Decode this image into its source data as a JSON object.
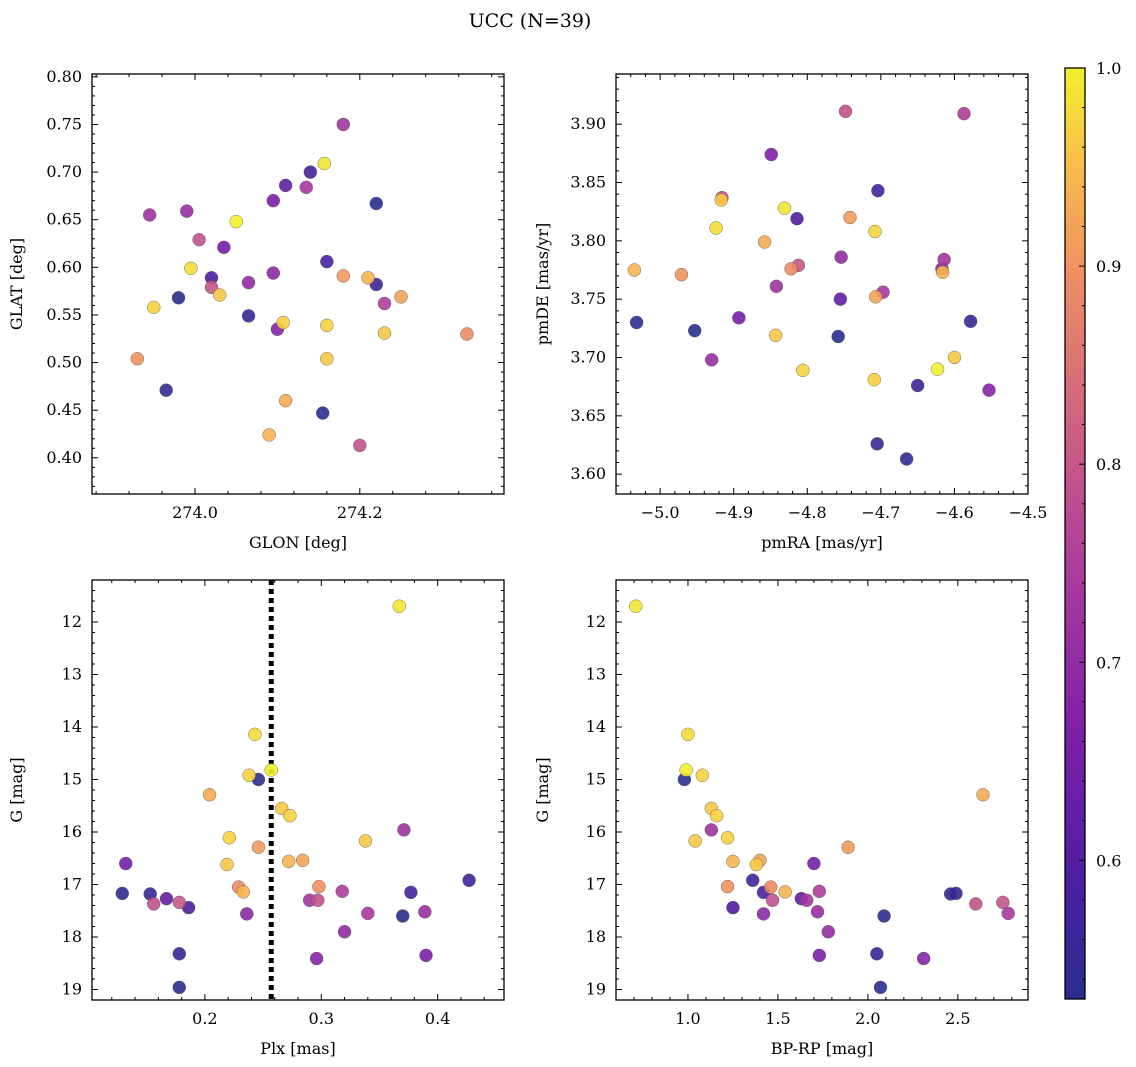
{
  "chart_data": {
    "title": "UCC (N=39)",
    "colorbar": {
      "cmap": "plasma",
      "range": [
        0.53,
        1.0
      ],
      "ticks": [
        "0.6",
        "0.7",
        "0.8",
        "0.9",
        "1.0"
      ]
    },
    "panels": [
      {
        "type": "scatter",
        "xlabel": "GLON [deg]",
        "ylabel": "GLAT [deg]",
        "xlim": [
          273.875,
          274.375
        ],
        "ylim": [
          0.362,
          0.803
        ],
        "xticks": [
          "274.0",
          "274.2"
        ],
        "yticks": [
          "0.40",
          "0.45",
          "0.50",
          "0.55",
          "0.60",
          "0.65",
          "0.70",
          "0.75",
          "0.80"
        ]
      },
      {
        "type": "scatter",
        "xlabel": "pmRA [mas/yr]",
        "ylabel": "pmDE [mas/yr]",
        "xlim": [
          -5.06,
          -4.5
        ],
        "ylim": [
          3.583,
          3.943
        ],
        "xticks": [
          "−5.0",
          "−4.9",
          "−4.8",
          "−4.7",
          "−4.6",
          "−4.5"
        ],
        "yticks": [
          "3.60",
          "3.65",
          "3.70",
          "3.75",
          "3.80",
          "3.85",
          "3.90"
        ]
      },
      {
        "type": "scatter",
        "xlabel": "Plx [mas]",
        "ylabel": "G [mag]",
        "xlim": [
          0.103,
          0.457
        ],
        "ylim": [
          19.2,
          11.2
        ],
        "invert_y": true,
        "xticks": [
          "0.2",
          "0.3",
          "0.4"
        ],
        "yticks": [
          "12",
          "13",
          "14",
          "15",
          "16",
          "17",
          "18",
          "19"
        ],
        "vline": 0.257
      },
      {
        "type": "scatter",
        "xlabel": "BP-RP [mag]",
        "ylabel": "G [mag]",
        "xlim": [
          0.6,
          2.89
        ],
        "ylim": [
          19.2,
          11.2
        ],
        "invert_y": true,
        "xticks": [
          "1.0",
          "1.5",
          "2.0",
          "2.5"
        ],
        "yticks": [
          "12",
          "13",
          "14",
          "15",
          "16",
          "17",
          "18",
          "19"
        ]
      }
    ],
    "points": [
      {
        "glon": 274.157,
        "glat": 0.709,
        "pmra": -4.831,
        "pmde": 3.828,
        "plx": 0.367,
        "g": 11.7,
        "bprp": 0.71,
        "p": 0.99
      },
      {
        "glon": 273.995,
        "glat": 0.599,
        "pmra": -4.924,
        "pmde": 3.811,
        "plx": 0.243,
        "g": 14.14,
        "bprp": 1.0,
        "p": 0.98
      },
      {
        "glon": 273.98,
        "glat": 0.568,
        "pmra": -4.953,
        "pmde": 3.723,
        "plx": 0.246,
        "g": 15.0,
        "bprp": 0.98,
        "p": 0.53
      },
      {
        "glon": 274.05,
        "glat": 0.648,
        "pmra": -4.623,
        "pmde": 3.69,
        "plx": 0.257,
        "g": 14.82,
        "bprp": 0.99,
        "p": 1.0
      },
      {
        "glon": 274.107,
        "glat": 0.542,
        "pmra": -4.806,
        "pmde": 3.689,
        "plx": 0.238,
        "g": 14.92,
        "bprp": 1.08,
        "p": 0.97
      },
      {
        "glon": 274.16,
        "glat": 0.539,
        "pmra": -4.708,
        "pmde": 3.808,
        "plx": 0.273,
        "g": 15.69,
        "bprp": 1.16,
        "p": 0.97
      },
      {
        "glon": 274.23,
        "glat": 0.531,
        "pmra": -4.917,
        "pmde": 3.835,
        "plx": 0.266,
        "g": 15.55,
        "bprp": 1.13,
        "p": 0.96
      },
      {
        "glon": 274.11,
        "glat": 0.46,
        "pmra": -4.858,
        "pmde": 3.799,
        "plx": 0.204,
        "g": 15.29,
        "bprp": 2.64,
        "p": 0.93
      },
      {
        "glon": 273.95,
        "glat": 0.558,
        "pmra": -4.709,
        "pmde": 3.681,
        "plx": 0.221,
        "g": 16.11,
        "bprp": 1.22,
        "p": 0.97
      },
      {
        "glon": 274.16,
        "glat": 0.504,
        "pmra": -4.6,
        "pmde": 3.7,
        "plx": 0.338,
        "g": 16.17,
        "bprp": 1.04,
        "p": 0.96
      },
      {
        "glon": 274.03,
        "glat": 0.571,
        "pmra": -4.843,
        "pmde": 3.719,
        "plx": 0.219,
        "g": 16.62,
        "bprp": 1.38,
        "p": 0.96
      },
      {
        "glon": 274.21,
        "glat": 0.589,
        "pmra": -4.616,
        "pmde": 3.773,
        "plx": 0.272,
        "g": 16.56,
        "bprp": 1.25,
        "p": 0.94
      },
      {
        "glon": 274.25,
        "glat": 0.569,
        "pmra": -4.707,
        "pmde": 3.752,
        "plx": 0.284,
        "g": 16.54,
        "bprp": 1.4,
        "p": 0.92
      },
      {
        "glon": 274.18,
        "glat": 0.591,
        "pmra": -4.742,
        "pmde": 3.82,
        "plx": 0.246,
        "g": 16.29,
        "bprp": 1.89,
        "p": 0.91
      },
      {
        "glon": 274.09,
        "glat": 0.424,
        "pmra": -5.035,
        "pmde": 3.775,
        "plx": 0.233,
        "g": 17.14,
        "bprp": 1.54,
        "p": 0.94
      },
      {
        "glon": 273.93,
        "glat": 0.504,
        "pmra": -4.971,
        "pmde": 3.771,
        "plx": 0.298,
        "g": 17.04,
        "bprp": 1.22,
        "p": 0.9
      },
      {
        "glon": 274.33,
        "glat": 0.53,
        "pmra": -4.822,
        "pmde": 3.776,
        "plx": 0.229,
        "g": 17.05,
        "bprp": 1.46,
        "p": 0.89
      },
      {
        "glon": 274.005,
        "glat": 0.629,
        "pmra": -4.916,
        "pmde": 3.837,
        "plx": 0.156,
        "g": 17.37,
        "bprp": 2.6,
        "p": 0.79
      },
      {
        "glon": 274.02,
        "glat": 0.579,
        "pmra": -4.812,
        "pmde": 3.779,
        "plx": 0.178,
        "g": 17.34,
        "bprp": 2.75,
        "p": 0.8
      },
      {
        "glon": 274.2,
        "glat": 0.413,
        "pmra": -4.748,
        "pmde": 3.911,
        "plx": 0.297,
        "g": 17.3,
        "bprp": 1.47,
        "p": 0.79
      },
      {
        "glon": 274.18,
        "glat": 0.75,
        "pmra": -4.614,
        "pmde": 3.784,
        "plx": 0.29,
        "g": 17.3,
        "bprp": 1.66,
        "p": 0.73
      },
      {
        "glon": 274.23,
        "glat": 0.562,
        "pmra": -4.587,
        "pmde": 3.909,
        "plx": 0.318,
        "g": 17.13,
        "bprp": 1.73,
        "p": 0.75
      },
      {
        "glon": 274.135,
        "glat": 0.684,
        "pmra": -4.697,
        "pmde": 3.756,
        "plx": 0.34,
        "g": 17.55,
        "bprp": 2.78,
        "p": 0.74
      },
      {
        "glon": 273.945,
        "glat": 0.655,
        "pmra": -4.842,
        "pmde": 3.761,
        "plx": 0.371,
        "g": 15.96,
        "bprp": 1.13,
        "p": 0.72
      },
      {
        "glon": 273.99,
        "glat": 0.659,
        "pmra": -4.93,
        "pmde": 3.698,
        "plx": 0.389,
        "g": 17.52,
        "bprp": 1.72,
        "p": 0.71
      },
      {
        "glon": 274.065,
        "glat": 0.584,
        "pmra": -4.754,
        "pmde": 3.786,
        "plx": 0.32,
        "g": 17.9,
        "bprp": 1.78,
        "p": 0.7
      },
      {
        "glon": 274.095,
        "glat": 0.594,
        "pmra": -4.617,
        "pmde": 3.776,
        "plx": 0.236,
        "g": 17.56,
        "bprp": 1.42,
        "p": 0.69
      },
      {
        "glon": 274.1,
        "glat": 0.535,
        "pmra": -4.553,
        "pmde": 3.672,
        "plx": 0.296,
        "g": 18.41,
        "bprp": 2.31,
        "p": 0.68
      },
      {
        "glon": 274.095,
        "glat": 0.67,
        "pmra": -4.849,
        "pmde": 3.874,
        "plx": 0.39,
        "g": 18.35,
        "bprp": 1.73,
        "p": 0.66
      },
      {
        "glon": 274.035,
        "glat": 0.621,
        "pmra": -4.893,
        "pmde": 3.734,
        "plx": 0.132,
        "g": 16.6,
        "bprp": 1.7,
        "p": 0.65
      },
      {
        "glon": 274.11,
        "glat": 0.686,
        "pmra": -4.755,
        "pmde": 3.75,
        "plx": 0.167,
        "g": 17.27,
        "bprp": 1.63,
        "p": 0.62
      },
      {
        "glon": 274.02,
        "glat": 0.589,
        "pmra": -4.814,
        "pmde": 3.819,
        "plx": 0.186,
        "g": 17.44,
        "bprp": 1.25,
        "p": 0.59
      },
      {
        "glon": 274.16,
        "glat": 0.606,
        "pmra": -4.704,
        "pmde": 3.843,
        "plx": 0.377,
        "g": 17.15,
        "bprp": 1.42,
        "p": 0.58
      },
      {
        "glon": 274.14,
        "glat": 0.7,
        "pmra": -4.65,
        "pmde": 3.676,
        "plx": 0.427,
        "g": 16.92,
        "bprp": 1.36,
        "p": 0.57
      },
      {
        "glon": 274.22,
        "glat": 0.582,
        "pmra": -4.705,
        "pmde": 3.626,
        "plx": 0.178,
        "g": 18.32,
        "bprp": 2.05,
        "p": 0.56
      },
      {
        "glon": 274.065,
        "glat": 0.549,
        "pmra": -4.578,
        "pmde": 3.731,
        "plx": 0.153,
        "g": 17.18,
        "bprp": 2.46,
        "p": 0.55
      },
      {
        "glon": 273.965,
        "glat": 0.471,
        "pmra": -4.665,
        "pmde": 3.613,
        "plx": 0.129,
        "g": 17.17,
        "bprp": 2.49,
        "p": 0.54
      },
      {
        "glon": 274.155,
        "glat": 0.447,
        "pmra": -5.032,
        "pmde": 3.73,
        "plx": 0.37,
        "g": 17.6,
        "bprp": 2.09,
        "p": 0.53
      },
      {
        "glon": 274.22,
        "glat": 0.667,
        "pmra": -4.758,
        "pmde": 3.718,
        "plx": 0.178,
        "g": 18.96,
        "bprp": 2.07,
        "p": 0.53
      }
    ]
  }
}
